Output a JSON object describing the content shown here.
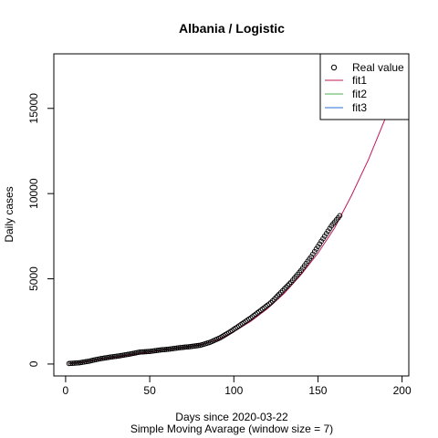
{
  "chart_data": {
    "type": "scatter",
    "title": "Albania / Logistic",
    "xlabel": "Days since 2020-03-22",
    "subtitle": "Simple Moving Avarage (window size = 7)",
    "ylabel": "Daily cases",
    "xlim": [
      -7,
      204
    ],
    "ylim": [
      -700,
      18200
    ],
    "x_ticks": [
      0,
      50,
      100,
      150,
      200
    ],
    "y_ticks": [
      0,
      5000,
      10000,
      15000
    ],
    "grid": false,
    "legend_position": "top-right",
    "legend": [
      "Real value",
      "fit1",
      "fit2",
      "fit3"
    ],
    "colors": {
      "points": "#000000",
      "fit1": "#c2185b",
      "fit2": "#4caf50",
      "fit3": "#2a6fd6"
    },
    "real_value": {
      "x": [
        2,
        8,
        14,
        20,
        26,
        32,
        38,
        44,
        50,
        56,
        62,
        68,
        74,
        80,
        86,
        92,
        98,
        104,
        110,
        116,
        122,
        128,
        134,
        140,
        146,
        152,
        158,
        163
      ],
      "y": [
        30,
        70,
        170,
        300,
        400,
        480,
        580,
        700,
        740,
        820,
        880,
        960,
        1020,
        1100,
        1280,
        1550,
        1900,
        2300,
        2700,
        3150,
        3600,
        4200,
        4800,
        5500,
        6300,
        7200,
        8100,
        8700
      ]
    },
    "fit1": {
      "x": [
        2,
        10,
        20,
        30,
        40,
        50,
        60,
        70,
        80,
        90,
        100,
        110,
        120,
        130,
        140,
        150,
        160,
        170,
        180,
        190,
        200
      ],
      "y": [
        40,
        110,
        280,
        400,
        560,
        700,
        850,
        980,
        1130,
        1400,
        1900,
        2500,
        3250,
        4150,
        5250,
        6500,
        8000,
        9900,
        12000,
        14400,
        17300
      ]
    }
  }
}
